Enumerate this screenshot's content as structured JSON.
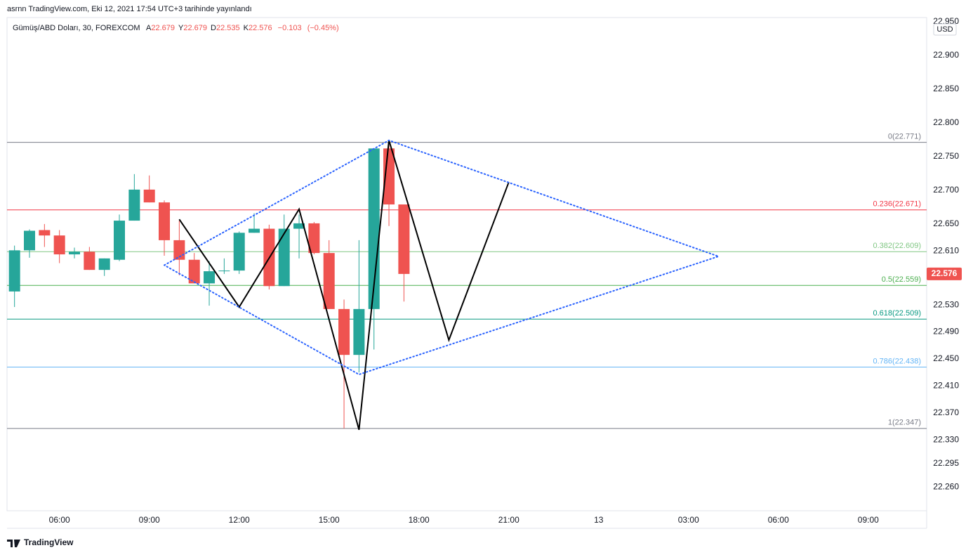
{
  "header": "asrnn TradingView.com, Eki 12, 2021 17:54 UTC+3 tarihinde yayınlandı",
  "footer": "TradingView",
  "chart_data": {
    "type": "candlestick",
    "currency": "USD",
    "legend": {
      "symbol": "Gümüş/ABD Doları, 30, FOREXCOM",
      "fields": [
        {
          "label": "A",
          "value": 22.679
        },
        {
          "label": "Y",
          "value": 22.679
        },
        {
          "label": "D",
          "value": 22.535
        },
        {
          "label": "K",
          "value": 22.576
        }
      ],
      "change": {
        "value": -0.103,
        "label": "−0.103"
      },
      "change_pct": {
        "value": -0.45,
        "label": "(−0.45%)"
      }
    },
    "up_color": "#26a69a",
    "down_color": "#ef5350",
    "x": [
      "04:30",
      "05:00",
      "05:30",
      "06:00",
      "06:30",
      "07:00",
      "07:30",
      "08:00",
      "08:30",
      "09:00",
      "09:30",
      "10:00",
      "10:30",
      "11:00",
      "11:30",
      "12:00",
      "12:30",
      "13:00",
      "13:30",
      "14:00",
      "14:30",
      "15:00",
      "15:30",
      "16:00",
      "16:30",
      "17:00",
      "17:30"
    ],
    "open": [
      22.55,
      22.611,
      22.641,
      22.633,
      22.605,
      22.609,
      22.582,
      22.597,
      22.655,
      22.701,
      22.682,
      22.626,
      22.597,
      22.562,
      22.58,
      22.581,
      22.637,
      22.643,
      22.558,
      22.643,
      22.651,
      22.607,
      22.524,
      22.456,
      22.524,
      22.762,
      22.679
    ],
    "high": [
      22.618,
      22.642,
      22.65,
      22.641,
      22.615,
      22.616,
      22.599,
      22.664,
      22.724,
      22.722,
      22.685,
      22.655,
      22.607,
      22.595,
      22.599,
      22.639,
      22.666,
      22.649,
      22.664,
      22.664,
      22.653,
      22.626,
      22.538,
      22.626,
      22.762,
      22.774,
      22.679
    ],
    "low": [
      22.527,
      22.6,
      22.616,
      22.592,
      22.599,
      22.582,
      22.573,
      22.595,
      22.655,
      22.682,
      22.603,
      22.574,
      22.562,
      22.529,
      22.576,
      22.576,
      22.637,
      22.553,
      22.558,
      22.599,
      22.605,
      22.524,
      22.347,
      22.43,
      22.464,
      22.647,
      22.535
    ],
    "close": [
      22.611,
      22.64,
      22.633,
      22.605,
      22.609,
      22.582,
      22.599,
      22.655,
      22.701,
      22.682,
      22.626,
      22.597,
      22.562,
      22.58,
      22.581,
      22.637,
      22.643,
      22.558,
      22.643,
      22.651,
      22.607,
      22.524,
      22.456,
      22.524,
      22.762,
      22.679,
      22.576
    ],
    "xlim": [
      -0.5,
      60.9
    ],
    "xticks": [
      {
        "value": 3,
        "label": "06:00"
      },
      {
        "value": 9,
        "label": "09:00"
      },
      {
        "value": 15,
        "label": "12:00"
      },
      {
        "value": 21,
        "label": "15:00"
      },
      {
        "value": 27,
        "label": "18:00"
      },
      {
        "value": 33,
        "label": "21:00"
      },
      {
        "value": 39,
        "label": "13"
      },
      {
        "value": 45,
        "label": "03:00"
      },
      {
        "value": 51,
        "label": "06:00"
      },
      {
        "value": 57,
        "label": "09:00"
      }
    ],
    "ylim": [
      22.225,
      22.956
    ],
    "yticks": [
      {
        "value": 22.95,
        "label": "22.950"
      },
      {
        "value": 22.9,
        "label": "22.900"
      },
      {
        "value": 22.85,
        "label": "22.850"
      },
      {
        "value": 22.8,
        "label": "22.800"
      },
      {
        "value": 22.75,
        "label": "22.750"
      },
      {
        "value": 22.7,
        "label": "22.700"
      },
      {
        "value": 22.65,
        "label": "22.650"
      },
      {
        "value": 22.61,
        "label": "22.610"
      },
      {
        "value": 22.53,
        "label": "22.530"
      },
      {
        "value": 22.49,
        "label": "22.490"
      },
      {
        "value": 22.45,
        "label": "22.450"
      },
      {
        "value": 22.41,
        "label": "22.410"
      },
      {
        "value": 22.37,
        "label": "22.370"
      },
      {
        "value": 22.33,
        "label": "22.330"
      },
      22.295,
      {
        "value": 22.26,
        "label": "22.260"
      }
    ],
    "grid": false,
    "fib_levels": [
      {
        "value": 22.771,
        "label": "0(22.771)",
        "color": "#787b86"
      },
      {
        "value": 22.671,
        "label": "0.236(22.671)",
        "color": "#f23645"
      },
      {
        "value": 22.609,
        "label": "0.382(22.609)",
        "color": "#81c784"
      },
      {
        "value": 22.559,
        "label": "0.5(22.559)",
        "color": "#4caf50"
      },
      {
        "value": 22.509,
        "label": "0.618(22.509)",
        "color": "#089981"
      },
      {
        "value": 22.438,
        "label": "0.786(22.438)",
        "color": "#64b5f6"
      },
      {
        "value": 22.347,
        "label": "1(22.347)",
        "color": "#787b86"
      }
    ],
    "drawings": [
      {
        "color": "#000000",
        "dashed": false,
        "x": [
          11,
          15,
          19,
          23,
          25,
          29,
          33
        ],
        "y": [
          22.657,
          22.527,
          22.672,
          22.345,
          22.774,
          22.478,
          22.712
        ]
      },
      {
        "color": "#2962ff",
        "dashed": true,
        "x": [
          10,
          25,
          47,
          23,
          10
        ],
        "y": [
          22.589,
          22.774,
          22.602,
          22.427,
          22.589
        ]
      }
    ]
  }
}
